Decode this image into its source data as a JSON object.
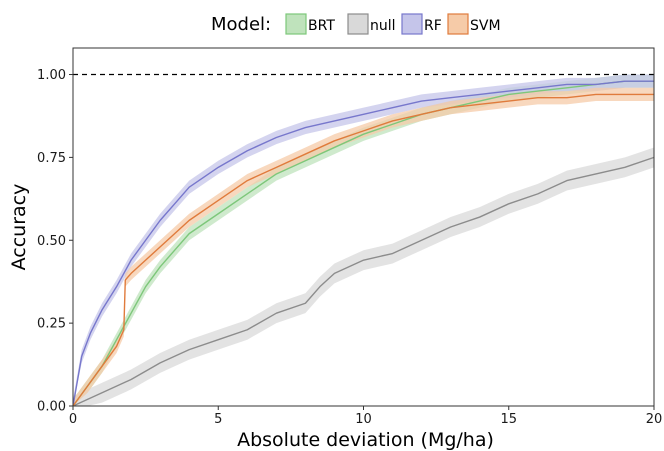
{
  "chart_data": {
    "type": "line",
    "xlabel": "Absolute deviation (Mg/ha)",
    "ylabel": "Accuracy",
    "xlim": [
      0,
      20
    ],
    "ylim": [
      0,
      1.08
    ],
    "x_ticks": [
      0,
      5,
      10,
      15,
      20
    ],
    "x_tick_labels": [
      "0",
      "5",
      "10",
      "15",
      "20"
    ],
    "y_ticks": [
      0,
      0.25,
      0.5,
      0.75,
      1.0
    ],
    "y_tick_labels": [
      "0.00",
      "0.25",
      "0.50",
      "0.75",
      "1.00"
    ],
    "grid": false,
    "legend": {
      "title": "Model:",
      "position": "top",
      "entries": [
        "BRT",
        "null",
        "RF",
        "SVM"
      ]
    },
    "reference_line": {
      "y": 1.0,
      "style": "dashed",
      "color": "#000000"
    },
    "series": [
      {
        "name": "BRT",
        "color": "#7dc77a",
        "band_color": "#bfe3bc",
        "band_halfwidth": 0.02,
        "x": [
          0,
          0.5,
          1,
          1.5,
          2,
          2.5,
          3,
          3.5,
          4,
          5,
          6,
          7,
          8,
          9,
          10,
          11,
          12,
          13,
          14,
          15,
          16,
          17,
          18,
          19,
          20
        ],
        "y": [
          0,
          0.06,
          0.12,
          0.2,
          0.28,
          0.36,
          0.42,
          0.47,
          0.52,
          0.58,
          0.64,
          0.7,
          0.74,
          0.78,
          0.82,
          0.85,
          0.88,
          0.9,
          0.92,
          0.94,
          0.95,
          0.96,
          0.97,
          0.98,
          0.98
        ]
      },
      {
        "name": "null",
        "color": "#8c8c8c",
        "band_color": "#d9d9d9",
        "band_halfwidth": 0.03,
        "x": [
          0,
          0.5,
          1,
          2,
          3,
          4,
          5,
          6,
          7,
          8,
          8.5,
          9,
          10,
          11,
          12,
          13,
          14,
          15,
          16,
          17,
          18,
          19,
          20
        ],
        "y": [
          0,
          0.02,
          0.04,
          0.08,
          0.13,
          0.17,
          0.2,
          0.23,
          0.28,
          0.31,
          0.36,
          0.4,
          0.44,
          0.46,
          0.5,
          0.54,
          0.57,
          0.61,
          0.64,
          0.68,
          0.7,
          0.72,
          0.75
        ]
      },
      {
        "name": "RF",
        "color": "#7777cc",
        "band_color": "#c5c5ea",
        "band_halfwidth": 0.02,
        "x": [
          0,
          0.3,
          0.6,
          1,
          1.5,
          2,
          2.5,
          3,
          3.5,
          4,
          5,
          6,
          7,
          8,
          9,
          10,
          11,
          12,
          13,
          14,
          15,
          16,
          17,
          18,
          19,
          20
        ],
        "y": [
          0,
          0.15,
          0.22,
          0.29,
          0.36,
          0.44,
          0.5,
          0.56,
          0.61,
          0.66,
          0.72,
          0.77,
          0.81,
          0.84,
          0.86,
          0.88,
          0.9,
          0.92,
          0.93,
          0.94,
          0.95,
          0.96,
          0.97,
          0.97,
          0.98,
          0.98
        ]
      },
      {
        "name": "SVM",
        "color": "#e07b3c",
        "band_color": "#f6cba8",
        "band_halfwidth": 0.02,
        "x": [
          0,
          0.5,
          1,
          1.5,
          1.75,
          1.8,
          2,
          2.5,
          3,
          3.5,
          4,
          5,
          6,
          7,
          8,
          9,
          10,
          11,
          12,
          13,
          14,
          15,
          16,
          17,
          18,
          19,
          20
        ],
        "y": [
          0,
          0.06,
          0.12,
          0.18,
          0.23,
          0.38,
          0.4,
          0.44,
          0.48,
          0.52,
          0.56,
          0.62,
          0.68,
          0.72,
          0.76,
          0.8,
          0.83,
          0.86,
          0.88,
          0.9,
          0.91,
          0.92,
          0.93,
          0.93,
          0.94,
          0.94,
          0.94
        ]
      }
    ]
  }
}
